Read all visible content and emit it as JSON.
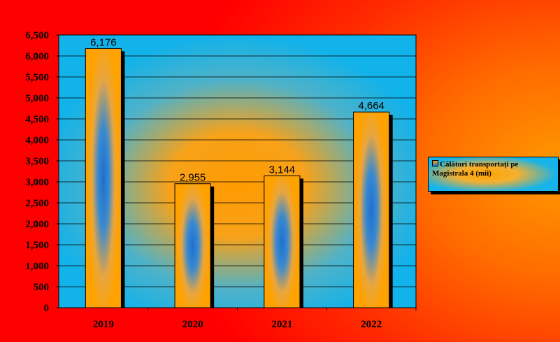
{
  "chart_data": {
    "type": "bar",
    "categories": [
      "2019",
      "2020",
      "2021",
      "2022"
    ],
    "series": [
      {
        "name": "Călători transportați pe Magistrala 4 (mii)",
        "values": [
          6176,
          2955,
          3144,
          4664
        ]
      }
    ],
    "data_labels": [
      "6,176",
      "2,955",
      "3,144",
      "4,664"
    ],
    "yticks": [
      "0",
      "500",
      "1,000",
      "1,500",
      "2,000",
      "2,500",
      "3,000",
      "3,500",
      "4,000",
      "4,500",
      "5,000",
      "5,500",
      "6,000",
      "6,500"
    ],
    "ylim": [
      0,
      6500
    ],
    "grid": true,
    "legend_position": "right",
    "colors": {
      "plot_background": "#16b4e8",
      "bar_edge": "#ffa200",
      "bar_center": "#1e6fcf",
      "frame": "#ff1a00"
    }
  },
  "legend": {
    "label": "Călători transportați pe Magistrala 4 (mii)"
  }
}
